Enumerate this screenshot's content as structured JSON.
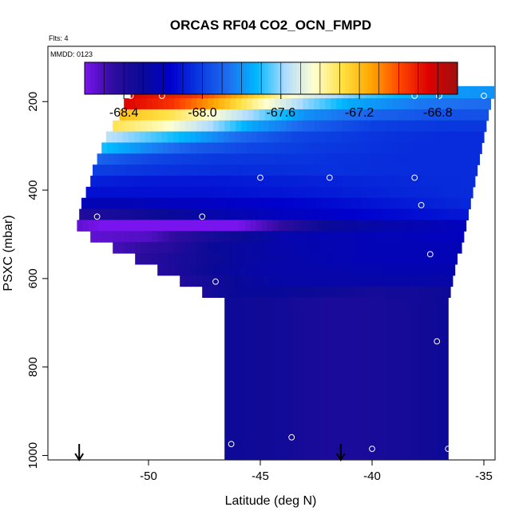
{
  "chart_data": {
    "type": "heatmap",
    "title": "ORCAS RF04 CO2_OCN_FMPD",
    "corner_labels": {
      "flights": "Flts: 4",
      "date": "MMDD: 0123"
    },
    "xlabel": "Latitude (deg N)",
    "ylabel": "PSXC (mbar)",
    "xlim": [
      -54.5,
      -34.5
    ],
    "ylim": [
      1010,
      75
    ],
    "xticks": [
      -50,
      -45,
      -40,
      -35
    ],
    "xtick_labels": [
      "-50",
      "-45",
      "-40",
      "-35"
    ],
    "yticks": [
      200,
      400,
      600,
      800,
      1000
    ],
    "ytick_labels": [
      "200",
      "400",
      "600",
      "800",
      "1000"
    ],
    "colorbar": {
      "min": -68.6,
      "max": -66.7,
      "ticks": [
        -68.4,
        -68.0,
        -67.6,
        -67.2,
        -66.8
      ],
      "tick_labels": [
        "-68.4",
        "-68.0",
        "-67.6",
        "-67.2",
        "-66.8"
      ],
      "stops": [
        "#7a14ee",
        "#2e0c9e",
        "#0a0a96",
        "#0000cd",
        "#0a3ae0",
        "#1e6ef0",
        "#00b8ff",
        "#b0dcff",
        "#ffffd0",
        "#ffe040",
        "#ffa500",
        "#ff4500",
        "#dc0000",
        "#a01010"
      ]
    },
    "layers": [
      {
        "p": 180,
        "lat_start": -50.8,
        "lat_end": -34.5,
        "values": [
          [
            -50.8,
            -66.85
          ],
          [
            -48.0,
            -66.95
          ],
          [
            -46.0,
            -67.15
          ],
          [
            -44.0,
            -67.4
          ],
          [
            -42.0,
            -67.55
          ],
          [
            -40.5,
            -67.65
          ],
          [
            -39.0,
            -67.72
          ],
          [
            -37.0,
            -67.78
          ],
          [
            -34.5,
            -67.8
          ]
        ]
      },
      {
        "p": 205,
        "lat_start": -51.1,
        "lat_end": -34.7,
        "values": [
          [
            -51.1,
            -66.85
          ],
          [
            -49.0,
            -66.95
          ],
          [
            -47.0,
            -67.15
          ],
          [
            -45.0,
            -67.4
          ],
          [
            -43.0,
            -67.6
          ],
          [
            -41.0,
            -67.75
          ],
          [
            -38.0,
            -67.85
          ],
          [
            -34.7,
            -67.88
          ]
        ]
      },
      {
        "p": 230,
        "lat_start": -51.3,
        "lat_end": -34.8,
        "values": [
          [
            -51.3,
            -67.2
          ],
          [
            -49.0,
            -67.3
          ],
          [
            -47.0,
            -67.45
          ],
          [
            -45.0,
            -67.62
          ],
          [
            -43.0,
            -67.8
          ],
          [
            -40.0,
            -67.9
          ],
          [
            -37.0,
            -67.95
          ],
          [
            -34.8,
            -67.95
          ]
        ]
      },
      {
        "p": 255,
        "lat_start": -51.6,
        "lat_end": -34.9,
        "values": [
          [
            -51.6,
            -67.3
          ],
          [
            -49.5,
            -67.4
          ],
          [
            -47.5,
            -67.55
          ],
          [
            -45.5,
            -67.75
          ],
          [
            -43.0,
            -67.9
          ],
          [
            -40.0,
            -68.0
          ],
          [
            -37.0,
            -68.02
          ],
          [
            -34.9,
            -68.02
          ]
        ]
      },
      {
        "p": 280,
        "lat_start": -51.9,
        "lat_end": -35.0,
        "values": [
          [
            -51.9,
            -67.55
          ],
          [
            -50.0,
            -67.65
          ],
          [
            -48.0,
            -67.75
          ],
          [
            -46.0,
            -67.88
          ],
          [
            -43.5,
            -67.98
          ],
          [
            -40.0,
            -68.03
          ],
          [
            -37.0,
            -68.05
          ],
          [
            -35.0,
            -68.05
          ]
        ]
      },
      {
        "p": 305,
        "lat_start": -52.1,
        "lat_end": -35.1,
        "values": [
          [
            -52.1,
            -67.7
          ],
          [
            -50.0,
            -67.82
          ],
          [
            -48.0,
            -67.92
          ],
          [
            -45.5,
            -67.98
          ],
          [
            -42.0,
            -68.02
          ],
          [
            -38.0,
            -68.05
          ],
          [
            -35.1,
            -68.05
          ]
        ]
      },
      {
        "p": 330,
        "lat_start": -52.3,
        "lat_end": -35.2,
        "values": [
          [
            -52.3,
            -67.9
          ],
          [
            -50.0,
            -67.98
          ],
          [
            -47.0,
            -68.02
          ],
          [
            -43.0,
            -68.03
          ],
          [
            -39.0,
            -68.05
          ],
          [
            -35.2,
            -68.05
          ]
        ]
      },
      {
        "p": 355,
        "lat_start": -52.5,
        "lat_end": -35.3,
        "values": [
          [
            -52.5,
            -68.0
          ],
          [
            -50.0,
            -68.03
          ],
          [
            -46.0,
            -68.05
          ],
          [
            -42.0,
            -68.04
          ],
          [
            -38.0,
            -68.05
          ],
          [
            -35.3,
            -68.05
          ]
        ]
      },
      {
        "p": 380,
        "lat_start": -52.6,
        "lat_end": -35.4,
        "values": [
          [
            -52.6,
            -68.08
          ],
          [
            -50.0,
            -68.1
          ],
          [
            -47.0,
            -68.1
          ],
          [
            -43.0,
            -68.08
          ],
          [
            -39.0,
            -68.06
          ],
          [
            -35.4,
            -68.05
          ]
        ]
      },
      {
        "p": 405,
        "lat_start": -52.8,
        "lat_end": -35.5,
        "values": [
          [
            -52.8,
            -68.12
          ],
          [
            -50.0,
            -68.12
          ],
          [
            -47.0,
            -68.12
          ],
          [
            -43.0,
            -68.1
          ],
          [
            -39.0,
            -68.07
          ],
          [
            -35.5,
            -68.05
          ]
        ]
      },
      {
        "p": 430,
        "lat_start": -53.0,
        "lat_end": -35.6,
        "values": [
          [
            -53.0,
            -68.22
          ],
          [
            -51.0,
            -68.22
          ],
          [
            -49.0,
            -68.2
          ],
          [
            -46.0,
            -68.18
          ],
          [
            -43.0,
            -68.15
          ],
          [
            -39.0,
            -68.1
          ],
          [
            -35.6,
            -68.06
          ]
        ]
      },
      {
        "p": 455,
        "lat_start": -53.1,
        "lat_end": -35.7,
        "values": [
          [
            -53.1,
            -68.4
          ],
          [
            -51.0,
            -68.35
          ],
          [
            -49.0,
            -68.3
          ],
          [
            -47.0,
            -68.25
          ],
          [
            -44.0,
            -68.2
          ],
          [
            -40.0,
            -68.15
          ],
          [
            -35.7,
            -68.1
          ]
        ]
      },
      {
        "p": 480,
        "lat_start": -53.2,
        "lat_end": -35.8,
        "values": [
          [
            -53.2,
            -68.55
          ],
          [
            -52.0,
            -68.6
          ],
          [
            -50.0,
            -68.7
          ],
          [
            -48.0,
            -68.7
          ],
          [
            -46.0,
            -68.6
          ],
          [
            -44.0,
            -68.45
          ],
          [
            -42.0,
            -68.3
          ],
          [
            -39.0,
            -68.25
          ],
          [
            -35.8,
            -68.2
          ]
        ]
      },
      {
        "p": 505,
        "lat_start": -52.6,
        "lat_end": -35.9,
        "values": [
          [
            -52.6,
            -68.55
          ],
          [
            -50.0,
            -68.52
          ],
          [
            -47.0,
            -68.35
          ],
          [
            -44.0,
            -68.25
          ],
          [
            -40.0,
            -68.22
          ],
          [
            -35.9,
            -68.2
          ]
        ]
      },
      {
        "p": 530,
        "lat_start": -51.6,
        "lat_end": -36.0,
        "values": [
          [
            -51.6,
            -68.5
          ],
          [
            -49.0,
            -68.42
          ],
          [
            -47.0,
            -68.3
          ],
          [
            -44.0,
            -68.25
          ],
          [
            -40.0,
            -68.22
          ],
          [
            -36.0,
            -68.22
          ]
        ]
      },
      {
        "p": 555,
        "lat_start": -50.6,
        "lat_end": -36.2,
        "values": [
          [
            -50.6,
            -68.45
          ],
          [
            -48.0,
            -68.35
          ],
          [
            -46.0,
            -68.28
          ],
          [
            -43.0,
            -68.25
          ],
          [
            -40.0,
            -68.22
          ],
          [
            -36.2,
            -68.22
          ]
        ]
      },
      {
        "p": 580,
        "lat_start": -49.6,
        "lat_end": -36.3,
        "values": [
          [
            -49.6,
            -68.42
          ],
          [
            -47.0,
            -68.3
          ],
          [
            -45.0,
            -68.26
          ],
          [
            -42.0,
            -68.25
          ],
          [
            -39.0,
            -68.24
          ],
          [
            -36.3,
            -68.24
          ]
        ]
      },
      {
        "p": 605,
        "lat_start": -48.6,
        "lat_end": -36.4,
        "values": [
          [
            -48.6,
            -68.4
          ],
          [
            -46.0,
            -68.3
          ],
          [
            -44.0,
            -68.26
          ],
          [
            -41.0,
            -68.26
          ],
          [
            -36.4,
            -68.26
          ]
        ]
      },
      {
        "p": 630,
        "lat_start": -47.6,
        "lat_end": -36.5,
        "values": [
          [
            -47.6,
            -68.38
          ],
          [
            -46.0,
            -68.3
          ],
          [
            -44.0,
            -68.3
          ],
          [
            -42.0,
            -68.32
          ],
          [
            -40.0,
            -68.35
          ],
          [
            -38.0,
            -68.34
          ],
          [
            -36.5,
            -68.32
          ]
        ]
      },
      {
        "p": 655,
        "lat_start": -46.6,
        "lat_end": -36.6,
        "values": [
          [
            -46.6,
            -68.32
          ],
          [
            -44.0,
            -68.34
          ],
          [
            -42.0,
            -68.38
          ],
          [
            -40.0,
            -68.37
          ],
          [
            -38.0,
            -68.34
          ],
          [
            -36.6,
            -68.32
          ]
        ]
      }
    ],
    "points": [
      {
        "lat": -50.8,
        "p": 187
      },
      {
        "lat": -49.4,
        "p": 187
      },
      {
        "lat": -38.1,
        "p": 187
      },
      {
        "lat": -37.0,
        "p": 187
      },
      {
        "lat": -35.0,
        "p": 187
      },
      {
        "lat": -45.0,
        "p": 372
      },
      {
        "lat": -41.9,
        "p": 372
      },
      {
        "lat": -38.1,
        "p": 372
      },
      {
        "lat": -35.0,
        "p": 372
      },
      {
        "lat": -37.8,
        "p": 434
      },
      {
        "lat": -52.3,
        "p": 460
      },
      {
        "lat": -47.6,
        "p": 460
      },
      {
        "lat": -35.6,
        "p": 497
      },
      {
        "lat": -37.4,
        "p": 545
      },
      {
        "lat": -47.0,
        "p": 607
      },
      {
        "lat": -36.0,
        "p": 660
      },
      {
        "lat": -52.8,
        "p": 674
      },
      {
        "lat": -47.1,
        "p": 748
      },
      {
        "lat": -37.1,
        "p": 742
      },
      {
        "lat": -36.2,
        "p": 804
      },
      {
        "lat": -43.6,
        "p": 959
      },
      {
        "lat": -46.3,
        "p": 974
      },
      {
        "lat": -40.0,
        "p": 985
      },
      {
        "lat": -36.6,
        "p": 985
      }
    ],
    "arrows": [
      {
        "lat": -53.1
      },
      {
        "lat": -41.4
      }
    ]
  }
}
